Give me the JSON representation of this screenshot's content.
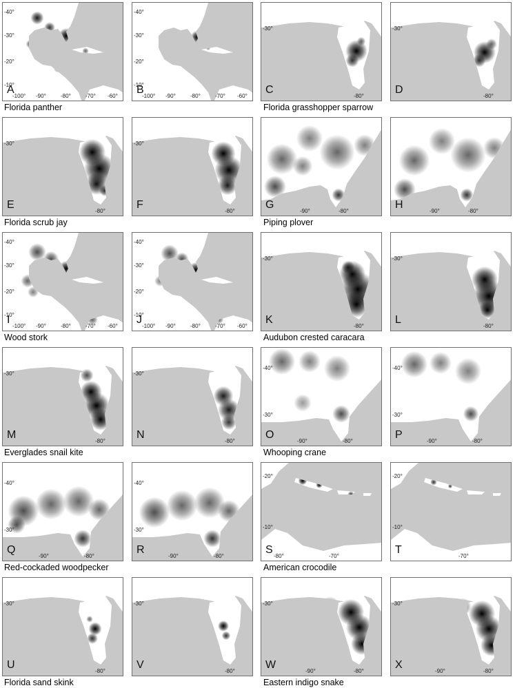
{
  "panels": [
    {
      "letter": "A",
      "map": "gulf",
      "x_ticks": [
        "-100°",
        "-90°",
        "-80°",
        "-70°",
        "-60°"
      ],
      "y_ticks": [
        "-40°",
        "-30°",
        "-20°",
        "-10°"
      ]
    },
    {
      "letter": "B",
      "map": "gulf",
      "x_ticks": [
        "-100°",
        "-90°",
        "-80°",
        "-70°",
        "-60°"
      ],
      "y_ticks": [
        "-40°",
        "-30°",
        "-20°",
        "-10°"
      ]
    },
    {
      "letter": "C",
      "map": "florida",
      "x_ticks": [
        "-80°"
      ],
      "y_ticks": [
        "-30°"
      ]
    },
    {
      "letter": "D",
      "map": "florida",
      "x_ticks": [
        "-80°"
      ],
      "y_ticks": [
        "-30°"
      ]
    },
    {
      "letter": "E",
      "map": "florida",
      "x_ticks": [
        "-80°"
      ],
      "y_ticks": [
        "-30°"
      ]
    },
    {
      "letter": "F",
      "map": "florida",
      "x_ticks": [
        "-80°"
      ],
      "y_ticks": [
        "-30°"
      ]
    },
    {
      "letter": "G",
      "map": "southeast",
      "x_ticks": [
        "-90°",
        "-80°"
      ],
      "y_ticks": []
    },
    {
      "letter": "H",
      "map": "southeast",
      "x_ticks": [
        "-90°",
        "-80°"
      ],
      "y_ticks": []
    },
    {
      "letter": "I",
      "map": "gulf",
      "x_ticks": [
        "-100°",
        "-90°",
        "-80°",
        "-70°",
        "-60°"
      ],
      "y_ticks": [
        "-40°",
        "-30°",
        "-20°",
        "-10°"
      ]
    },
    {
      "letter": "J",
      "map": "gulf",
      "x_ticks": [
        "-100°",
        "-90°",
        "-80°",
        "-70°",
        "-60°"
      ],
      "y_ticks": [
        "-40°",
        "-30°",
        "-20°",
        "-10°"
      ]
    },
    {
      "letter": "K",
      "map": "florida",
      "x_ticks": [
        "-80°"
      ],
      "y_ticks": [
        "-30°"
      ]
    },
    {
      "letter": "L",
      "map": "florida",
      "x_ticks": [
        "-80°"
      ],
      "y_ticks": [
        "-30°"
      ]
    },
    {
      "letter": "M",
      "map": "florida",
      "x_ticks": [
        "-80°"
      ],
      "y_ticks": [
        "-30°"
      ]
    },
    {
      "letter": "N",
      "map": "florida",
      "x_ticks": [
        "-80°"
      ],
      "y_ticks": [
        "-30°"
      ]
    },
    {
      "letter": "O",
      "map": "east",
      "x_ticks": [
        "-90°",
        "-80°"
      ],
      "y_ticks": [
        "-40°",
        "-30°"
      ]
    },
    {
      "letter": "P",
      "map": "east",
      "x_ticks": [
        "-90°",
        "-80°"
      ],
      "y_ticks": [
        "-40°",
        "-30°"
      ]
    },
    {
      "letter": "Q",
      "map": "east",
      "x_ticks": [
        "-90°",
        "-80°"
      ],
      "y_ticks": [
        "-40°",
        "-30°"
      ]
    },
    {
      "letter": "R",
      "map": "east",
      "x_ticks": [
        "-90°",
        "-80°"
      ],
      "y_ticks": [
        "-40°",
        "-30°"
      ]
    },
    {
      "letter": "S",
      "map": "caribbean",
      "x_ticks": [
        "-80°",
        "-70°"
      ],
      "y_ticks": [
        "-20°",
        "-10°"
      ]
    },
    {
      "letter": "T",
      "map": "caribbean",
      "x_ticks": [
        "-70°"
      ],
      "y_ticks": [
        "-20°",
        "-10°"
      ]
    },
    {
      "letter": "U",
      "map": "florida",
      "x_ticks": [
        "-80°"
      ],
      "y_ticks": [
        "-30°"
      ]
    },
    {
      "letter": "V",
      "map": "florida",
      "x_ticks": [
        "-80°"
      ],
      "y_ticks": [
        "-30°"
      ]
    },
    {
      "letter": "W",
      "map": "florida",
      "x_ticks": [
        "-90°",
        "-80°"
      ],
      "y_ticks": [
        "-30°"
      ]
    },
    {
      "letter": "X",
      "map": "florida",
      "x_ticks": [
        "-90°",
        "-80°"
      ],
      "y_ticks": [
        "-30°"
      ]
    }
  ],
  "captions": [
    "Florida panther",
    "Florida grasshopper sparrow",
    "Florida scrub jay",
    "Piping plover",
    "Wood stork",
    "Audubon crested caracara",
    "Everglades snail kite",
    "Whooping crane",
    "Red-cockaded woodpecker",
    "American crocodile",
    "Florida sand skink",
    "Eastern indigo snake"
  ],
  "colors": {
    "sea": "#c8c8c8",
    "land": "#ffffff",
    "high": "#000000",
    "border": "#6e6e6e"
  }
}
